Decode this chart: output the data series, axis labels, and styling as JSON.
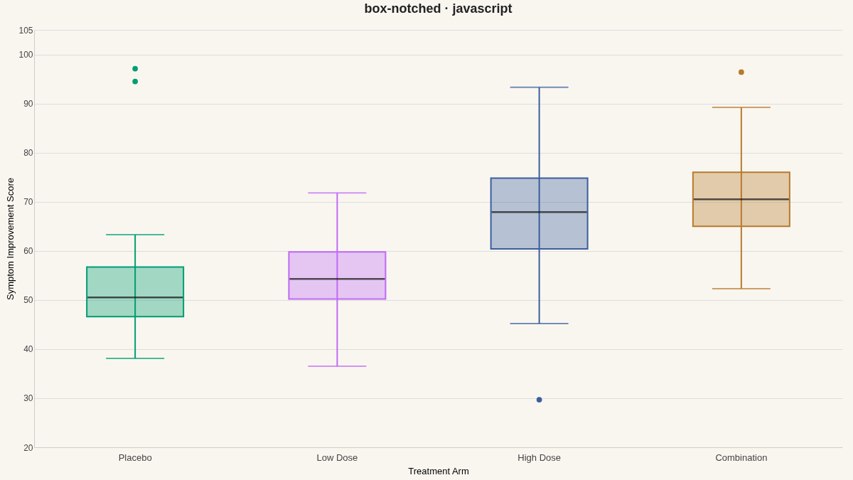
{
  "chart_data": {
    "type": "box",
    "title": "box-notched · javascript",
    "xlabel": "Treatment Arm",
    "ylabel": "Symptom Improvement Score",
    "categories": [
      "Placebo",
      "Low Dose",
      "High Dose",
      "Combination"
    ],
    "colors": [
      "#009e73",
      "#c06af5",
      "#3a5f9e",
      "#b87a2c"
    ],
    "boxes": [
      {
        "low": 38.1,
        "q1": 46.6,
        "median": 50.5,
        "q3": 56.7,
        "high": 63.3,
        "outliers": [
          97.1,
          94.5
        ]
      },
      {
        "low": 36.5,
        "q1": 50.2,
        "median": 54.3,
        "q3": 59.8,
        "high": 71.8
      },
      {
        "low": 45.2,
        "q1": 60.4,
        "median": 67.9,
        "q3": 74.8,
        "high": 93.3,
        "outliers": [
          29.7
        ]
      },
      {
        "low": 52.3,
        "q1": 65.0,
        "median": 70.5,
        "q3": 76.0,
        "high": 89.2,
        "outliers": [
          96.4
        ]
      }
    ],
    "ylim": [
      20,
      105
    ],
    "yticks": [
      20,
      30,
      40,
      50,
      60,
      70,
      80,
      90,
      100,
      105
    ],
    "grid": "y"
  }
}
